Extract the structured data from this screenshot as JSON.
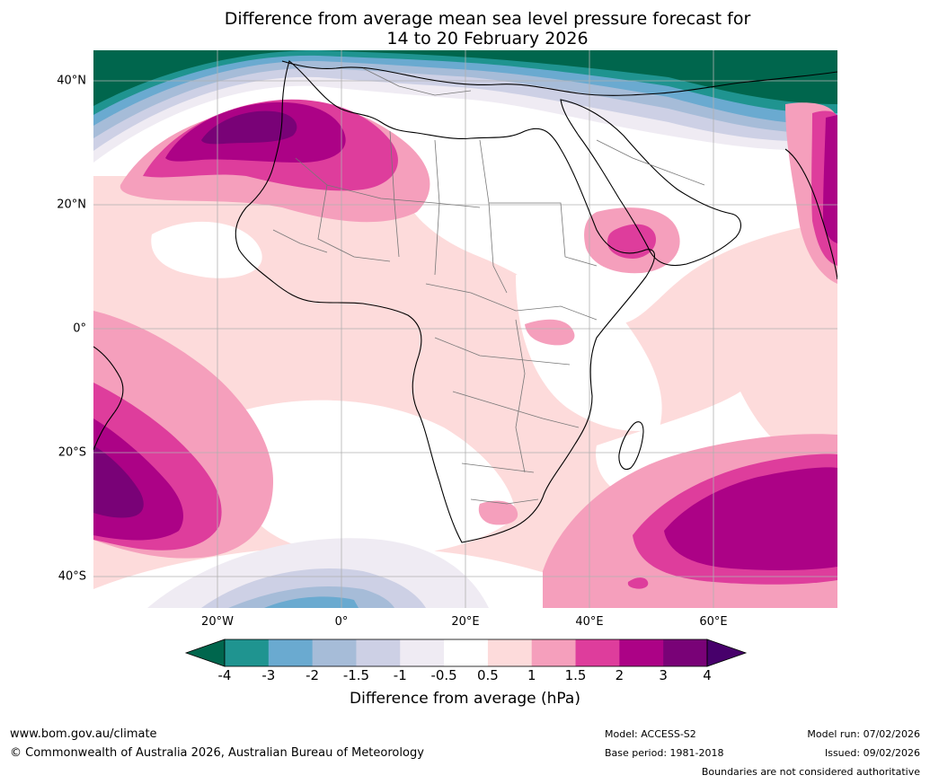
{
  "title": {
    "line1": "Difference from average mean sea level pressure forecast for",
    "line2": "14 to 20 February 2026"
  },
  "map": {
    "lat_labels": [
      "40°N",
      "20°N",
      "0°",
      "20°S",
      "40°S"
    ],
    "lon_labels": [
      "20°W",
      "0°",
      "20°E",
      "40°E",
      "60°E"
    ],
    "extent": {
      "lon_min": -40,
      "lon_max": 80,
      "lat_min": -45,
      "lat_max": 45
    }
  },
  "colorbar": {
    "title": "Difference from average (hPa)",
    "tick_labels": [
      "-4",
      "-3",
      "-2",
      "-1.5",
      "-1",
      "-0.5",
      "0.5",
      "1",
      "1.5",
      "2",
      "3",
      "4"
    ],
    "colors": {
      "below_min": "#00664d",
      "bins": [
        "#1f9490",
        "#6aaad0",
        "#a6bcd8",
        "#cdd0e5",
        "#efebf3",
        "#ffffff",
        "#fddbdb",
        "#f59fbc",
        "#de3d9c",
        "#ac0286",
        "#790277"
      ],
      "above_max": "#47006b"
    }
  },
  "footer": {
    "website": "www.bom.gov.au/climate",
    "copyright": "© Commonwealth of Australia 2026, Australian Bureau of Meteorology",
    "model": "Model: ACCESS-S2",
    "base_period": "Base period: 1981-2018",
    "model_run": "Model run: 07/02/2026",
    "issued": "Issued: 09/02/2026",
    "boundaries": "Boundaries are not considered authoritative"
  }
}
